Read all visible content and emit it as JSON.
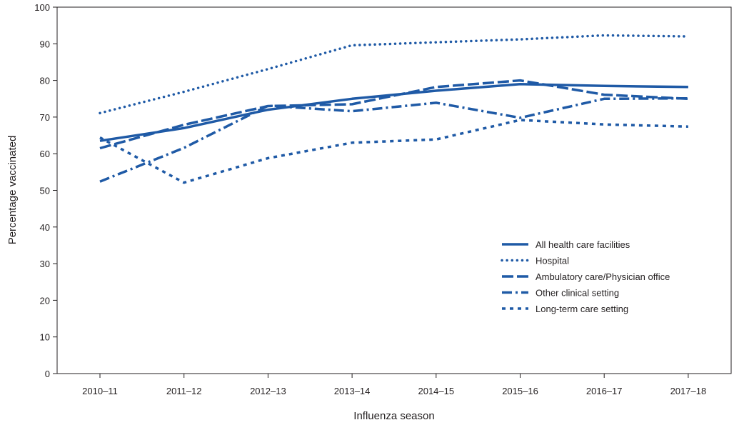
{
  "chart_data": {
    "type": "line",
    "title": "",
    "xlabel": "Influenza season",
    "ylabel": "Percentage vaccinated",
    "ylim": [
      0,
      100
    ],
    "yticks": [
      0,
      10,
      20,
      30,
      40,
      50,
      60,
      70,
      80,
      90,
      100
    ],
    "categories": [
      "2010–11",
      "2011–12",
      "2012–13",
      "2013–14",
      "2014–15",
      "2015–16",
      "2016–17",
      "2017–18"
    ],
    "legend_position": "right",
    "series": [
      {
        "name": "All health care facilities",
        "style": "solid",
        "values": [
          63.5,
          67.0,
          72.0,
          75.0,
          77.2,
          79.0,
          78.5,
          78.2
        ]
      },
      {
        "name": "Hospital",
        "style": "dotted",
        "values": [
          71.1,
          76.9,
          83.1,
          89.6,
          90.4,
          91.2,
          92.3,
          92.0
        ]
      },
      {
        "name": "Ambulatory care/Physician office",
        "style": "dashed",
        "values": [
          61.5,
          67.9,
          73.0,
          73.5,
          78.2,
          80.0,
          76.1,
          75.0
        ]
      },
      {
        "name": "Other clinical setting",
        "style": "dashdot",
        "values": [
          52.4,
          61.6,
          73.1,
          71.6,
          73.9,
          69.8,
          75.0,
          75.1
        ]
      },
      {
        "name": "Long-term care setting",
        "style": "shortdash",
        "values": [
          64.4,
          52.1,
          58.8,
          63.0,
          63.9,
          69.2,
          68.0,
          67.4
        ]
      }
    ],
    "colors": {
      "line": "#1f5aa6",
      "axis": "#231f20",
      "text": "#231f20"
    }
  }
}
